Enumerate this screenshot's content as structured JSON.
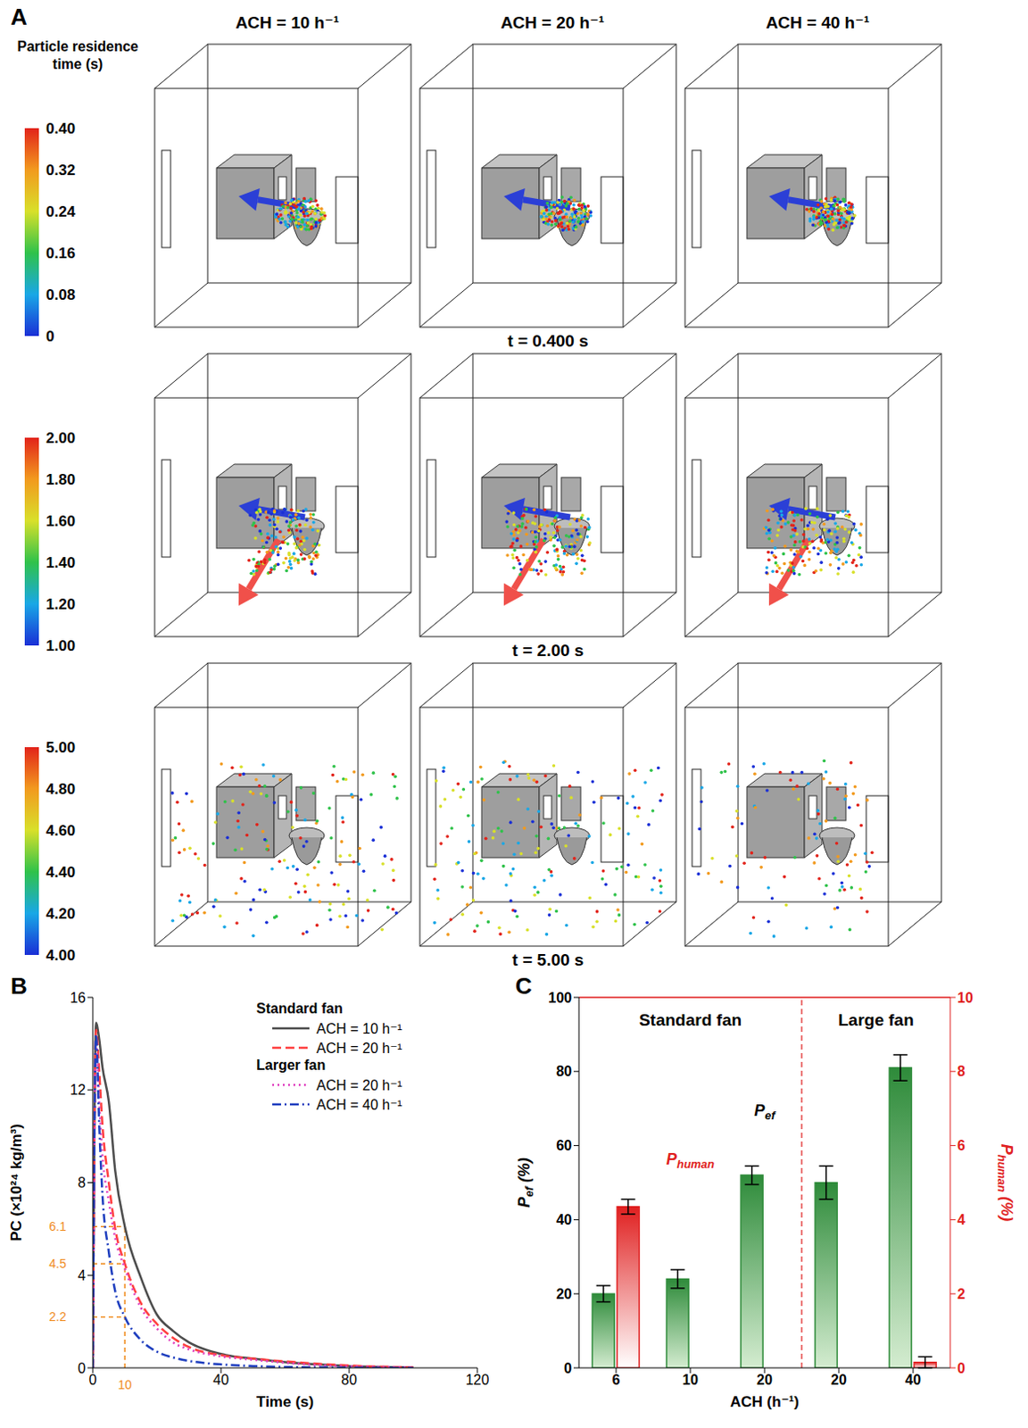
{
  "panel_a": {
    "letter": "A",
    "colorbar_title": "Particle residence time (s)",
    "columns": [
      "ACH = 10 h⁻¹",
      "ACH = 20 h⁻¹",
      "ACH = 40 h⁻¹"
    ],
    "rows": [
      {
        "time": "t = 0.400 s",
        "colorbar_range": [
          0,
          0.4
        ],
        "colorbar_ticks": [
          0,
          0.08,
          0.16,
          0.24,
          0.32,
          {
            "value": 0.4,
            "label": "0.40"
          }
        ]
      },
      {
        "time": "t = 2.00 s",
        "colorbar_range": [
          1,
          2
        ],
        "colorbar_ticks": [
          {
            "value": 1,
            "label": "1.00"
          },
          {
            "value": 1.2,
            "label": "1.20"
          },
          {
            "value": 1.4,
            "label": "1.40"
          },
          {
            "value": 1.6,
            "label": "1.60"
          },
          {
            "value": 1.8,
            "label": "1.80"
          },
          {
            "value": 2,
            "label": "2.00"
          }
        ]
      },
      {
        "time": "t = 5.00 s",
        "colorbar_range": [
          4,
          5
        ],
        "colorbar_ticks": [
          {
            "value": 4,
            "label": "4.00"
          },
          {
            "value": 4.2,
            "label": "4.20"
          },
          {
            "value": 4.4,
            "label": "4.40"
          },
          {
            "value": 4.6,
            "label": "4.60"
          },
          {
            "value": 4.8,
            "label": "4.80"
          },
          {
            "value": 5,
            "label": "5.00"
          }
        ]
      }
    ]
  },
  "chart_data": [
    {
      "panel": "B",
      "type": "line",
      "x_label": "Time (s)",
      "y_label": "PC (×10²⁴ kg/m³)",
      "x": [
        0,
        1,
        2,
        3,
        5,
        7,
        10,
        15,
        20,
        25,
        30,
        40,
        50,
        60,
        70,
        80,
        90,
        100
      ],
      "xlim": [
        0,
        120
      ],
      "xticks": [
        0,
        40,
        80,
        120
      ],
      "ylim": [
        0,
        16
      ],
      "yticks": [
        0,
        4,
        8,
        12,
        16
      ],
      "legend": "upper right",
      "series": [
        {
          "name": "ACH = 10 h⁻¹",
          "group": "Standard fan",
          "color": "#4d4d4d",
          "line_style": "solid",
          "values": [
            0,
            14.9,
            14.2,
            13.0,
            11.5,
            8.5,
            6.1,
            3.9,
            2.3,
            1.6,
            1.1,
            0.6,
            0.4,
            0.25,
            0.15,
            0.08,
            0.04,
            0.02
          ]
        },
        {
          "name": "ACH = 20 h⁻¹",
          "group": "Standard fan",
          "color": "#ff4040",
          "line_style": "dashed",
          "values": [
            0,
            14.6,
            12.8,
            10.5,
            8.0,
            6.0,
            4.5,
            2.8,
            1.9,
            1.3,
            0.9,
            0.55,
            0.4,
            0.28,
            0.18,
            0.1,
            0.05,
            0.03
          ]
        },
        {
          "name": "ACH = 20 h⁻¹",
          "group": "Larger fan",
          "color": "#e040c0",
          "line_style": "dotted",
          "values": [
            0,
            14.0,
            11.5,
            9.2,
            7.2,
            5.6,
            4.3,
            2.6,
            1.7,
            1.1,
            0.8,
            0.5,
            0.35,
            0.22,
            0.12,
            0.07,
            0.04,
            0.02
          ]
        },
        {
          "name": "ACH = 40 h⁻¹",
          "group": "Larger fan",
          "color": "#1f3fbf",
          "line_style": "dashdot",
          "values": [
            0,
            14.4,
            10.5,
            7.5,
            5.0,
            3.3,
            2.2,
            1.2,
            0.7,
            0.45,
            0.3,
            0.15,
            0.08,
            0.04,
            0.02,
            0.01,
            0,
            0
          ]
        }
      ],
      "annotations": {
        "x": 10,
        "y": [
          6.1,
          4.5,
          2.2
        ],
        "color": "#f08c1e"
      }
    },
    {
      "panel": "C",
      "type": "bar",
      "x_label": "ACH (h⁻¹)",
      "categories": [
        "6",
        "10",
        "20",
        "20",
        "40"
      ],
      "groups": [
        {
          "label": "Standard fan",
          "count": 3
        },
        {
          "label": "Large fan",
          "count": 2
        }
      ],
      "ylim": [
        0,
        100
      ],
      "yticks": [
        0,
        20,
        40,
        60,
        80,
        100
      ],
      "y2lim": [
        0,
        10
      ],
      "y2ticks": [
        0,
        2,
        4,
        6,
        8,
        10
      ],
      "y_label": {
        "text": "P",
        "sub": "ef",
        "suffix": " (%)"
      },
      "y2_label": {
        "text": "P",
        "sub": "human",
        "suffix": " (%)"
      },
      "series": [
        {
          "name": {
            "text": "P",
            "sub": "ef"
          },
          "color": "#2e8b3a",
          "values": [
            20,
            24,
            52,
            50,
            81
          ],
          "errors": [
            2.2,
            2.5,
            2.5,
            4.5,
            3.5
          ]
        },
        {
          "name": {
            "text": "P",
            "sub": "human"
          },
          "color": "#e02020",
          "axis": "y2",
          "values": [
            4.35,
            null,
            null,
            null,
            0.15
          ],
          "errors": [
            0.2,
            null,
            null,
            null,
            0.15
          ]
        }
      ]
    }
  ]
}
